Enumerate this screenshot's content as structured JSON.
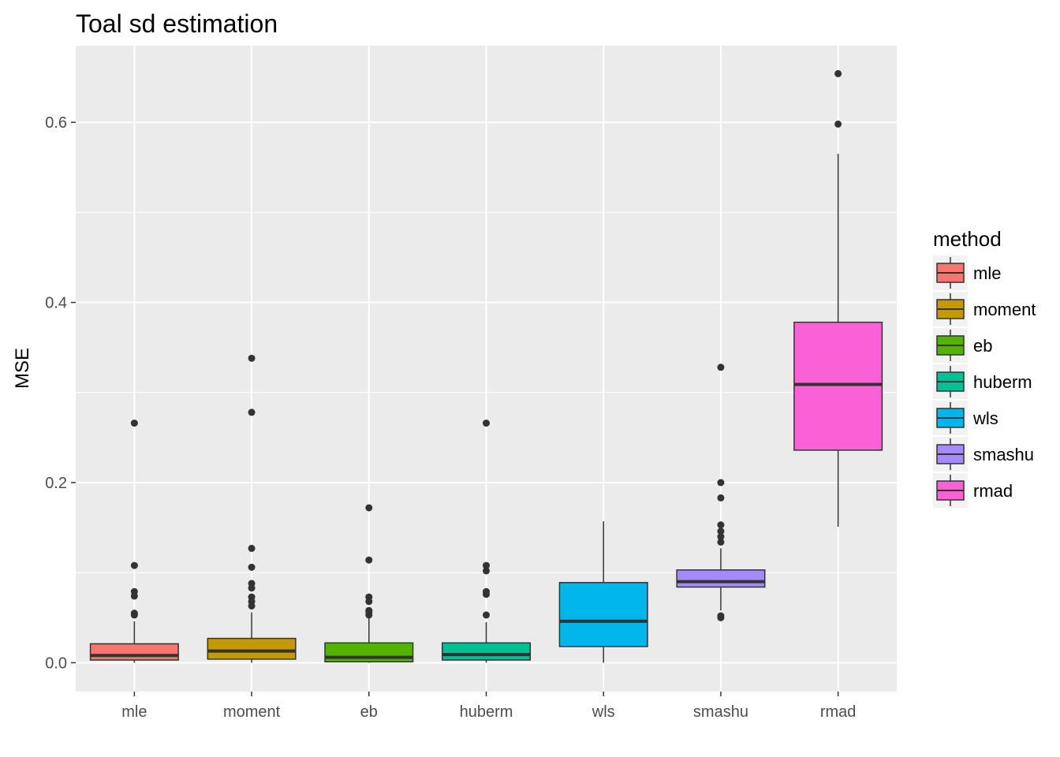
{
  "chart_data": {
    "type": "boxplot",
    "title": "Toal sd estimation",
    "xlabel": "",
    "ylabel": "MSE",
    "ylim": [
      -0.032,
      0.685
    ],
    "yticks": [
      0.0,
      0.2,
      0.4,
      0.6
    ],
    "ytick_labels": [
      "0.0",
      "0.2",
      "0.4",
      "0.6"
    ],
    "grid": true,
    "legend": {
      "title": "method",
      "position": "right"
    },
    "categories": [
      "mle",
      "moment",
      "eb",
      "huberm",
      "wls",
      "smashu",
      "rmad"
    ],
    "series": [
      {
        "name": "mle",
        "color": "#F8766D",
        "whisker_low": 0.0,
        "q1": 0.003,
        "median": 0.008,
        "q3": 0.021,
        "whisker_high": 0.046,
        "outliers": [
          0.053,
          0.055,
          0.074,
          0.079,
          0.108,
          0.266
        ]
      },
      {
        "name": "moment",
        "color": "#C49A00",
        "whisker_low": 0.0,
        "q1": 0.004,
        "median": 0.013,
        "q3": 0.027,
        "whisker_high": 0.056,
        "outliers": [
          0.063,
          0.068,
          0.073,
          0.083,
          0.088,
          0.106,
          0.127,
          0.278,
          0.338
        ]
      },
      {
        "name": "eb",
        "color": "#53B400",
        "whisker_low": 0.0,
        "q1": 0.001,
        "median": 0.006,
        "q3": 0.022,
        "whisker_high": 0.05,
        "outliers": [
          0.053,
          0.056,
          0.058,
          0.068,
          0.073,
          0.114,
          0.172
        ]
      },
      {
        "name": "huberm",
        "color": "#00C094",
        "whisker_low": 0.0,
        "q1": 0.003,
        "median": 0.009,
        "q3": 0.022,
        "whisker_high": 0.045,
        "outliers": [
          0.053,
          0.076,
          0.079,
          0.102,
          0.108,
          0.266
        ]
      },
      {
        "name": "wls",
        "color": "#00B6EB",
        "whisker_low": 0.0,
        "q1": 0.018,
        "median": 0.046,
        "q3": 0.089,
        "whisker_high": 0.157,
        "outliers": []
      },
      {
        "name": "smashu",
        "color": "#A58AFF",
        "whisker_low": 0.058,
        "q1": 0.084,
        "median": 0.09,
        "q3": 0.103,
        "whisker_high": 0.127,
        "outliers": [
          0.05,
          0.052,
          0.134,
          0.14,
          0.146,
          0.153,
          0.183,
          0.2,
          0.328
        ]
      },
      {
        "name": "rmad",
        "color": "#FB61D7",
        "whisker_low": 0.151,
        "q1": 0.236,
        "median": 0.309,
        "q3": 0.378,
        "whisker_high": 0.565,
        "outliers": [
          0.598,
          0.654
        ]
      }
    ]
  }
}
